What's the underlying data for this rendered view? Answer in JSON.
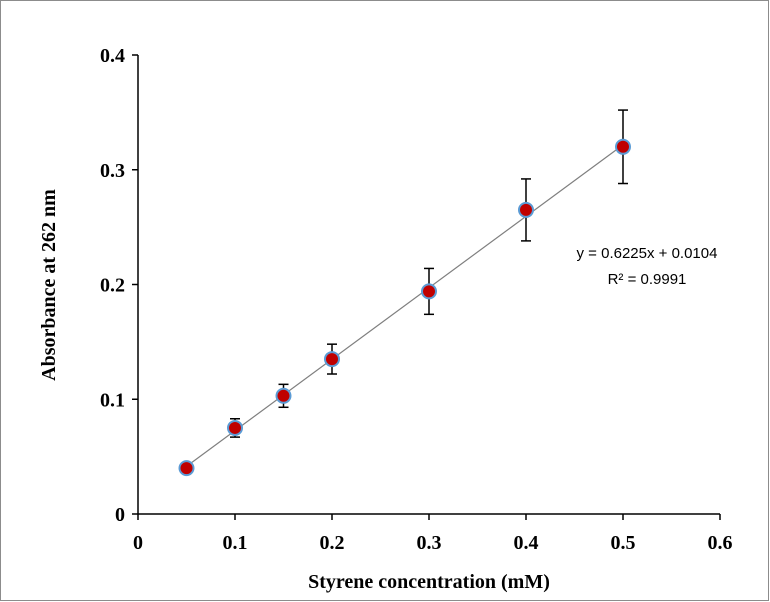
{
  "chart_data": {
    "type": "scatter",
    "xlabel": "Styrene concentration (mM)",
    "ylabel": "Absorbance at 262 nm",
    "xlim": [
      0,
      0.6
    ],
    "ylim": [
      0,
      0.4
    ],
    "x_ticks": [
      0,
      0.1,
      0.2,
      0.3,
      0.4,
      0.5,
      0.6
    ],
    "x_tick_labels": [
      "0",
      "0.1",
      "0.2",
      "0.3",
      "0.4",
      "0.5",
      "0.6"
    ],
    "y_ticks": [
      0,
      0.1,
      0.2,
      0.3,
      0.4
    ],
    "y_tick_labels": [
      "0",
      "0.1",
      "0.2",
      "0.3",
      "0.4"
    ],
    "grid": false,
    "series": [
      {
        "x": [
          0.05,
          0.1,
          0.15,
          0.2,
          0.3,
          0.4,
          0.5
        ],
        "y": [
          0.04,
          0.075,
          0.103,
          0.135,
          0.194,
          0.265,
          0.32
        ],
        "error": [
          0.002,
          0.008,
          0.01,
          0.013,
          0.02,
          0.027,
          0.032
        ],
        "marker_color": "#c00000",
        "marker_edge_color": "#5b9bd5"
      }
    ],
    "trendline": {
      "type": "linear",
      "slope": 0.6225,
      "intercept": 0.0104,
      "x_range": [
        0.05,
        0.5
      ],
      "color": "#7f7f7f"
    },
    "annotations": {
      "equation": "y = 0.6225x + 0.0104",
      "r_squared": "R² = 0.9991"
    }
  }
}
